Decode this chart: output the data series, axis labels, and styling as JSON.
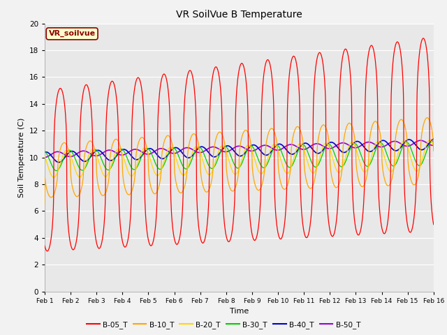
{
  "title": "VR SoilVue B Temperature",
  "xlabel": "Time",
  "ylabel": "Soil Temperature (C)",
  "ylim": [
    0,
    20
  ],
  "annotation": "VR_soilvue",
  "annotation_color": "#8B0000",
  "annotation_bg": "#FFFFCC",
  "plot_bg": "#E8E8E8",
  "fig_bg": "#F2F2F2",
  "grid_color": "#FFFFFF",
  "series_colors": {
    "B-05_T": "#FF0000",
    "B-10_T": "#FFA500",
    "B-20_T": "#FFD700",
    "B-30_T": "#00CC00",
    "B-40_T": "#0000CC",
    "B-50_T": "#9900CC"
  },
  "xtick_labels": [
    "Feb 1",
    "Feb 2",
    "Feb 3",
    "Feb 4",
    "Feb 5",
    "Feb 6",
    "Feb 7",
    "Feb 8",
    "Feb 9",
    "Feb 10",
    "Feb 11",
    "Feb 12",
    "Feb 13",
    "Feb 14",
    "Feb 15",
    "Feb 16"
  ],
  "ytick_vals": [
    0,
    2,
    4,
    6,
    8,
    10,
    12,
    14,
    16,
    18,
    20
  ],
  "n_points": 1440,
  "days": 15
}
